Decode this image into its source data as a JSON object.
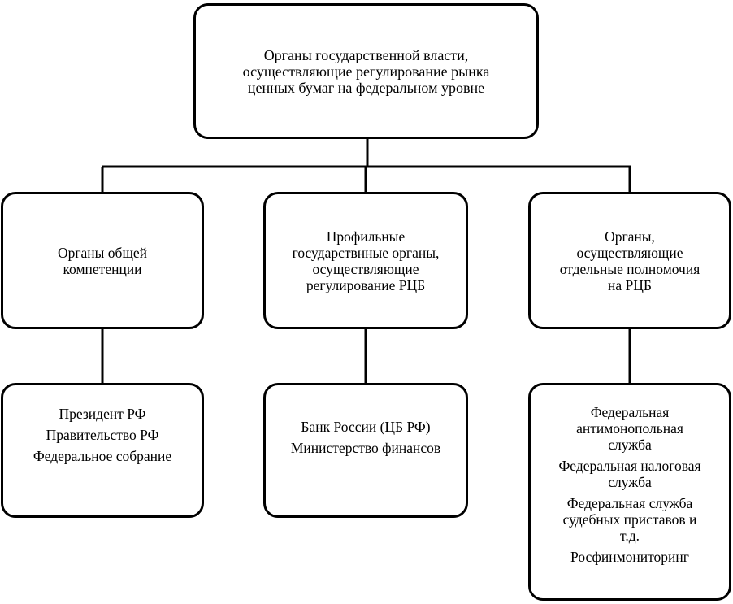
{
  "top": {
    "lines": [
      "Органы государственной власти,",
      "осуществляющие регулирование рынка",
      "ценных бумаг на федеральном уровне"
    ]
  },
  "categories": [
    {
      "title_lines": [
        "Органы общей",
        "компетенции"
      ],
      "items": [
        [
          "Президент РФ"
        ],
        [
          "Правительство РФ"
        ],
        [
          "Федеральное собрание"
        ]
      ]
    },
    {
      "title_lines": [
        "Профильные",
        "государствнные органы,",
        "осуществляющие",
        "регулирование РЦБ"
      ],
      "items": [
        [
          "Банк России (ЦБ РФ)"
        ],
        [
          "Министерство финансов"
        ]
      ]
    },
    {
      "title_lines": [
        "Органы,",
        "осуществляющие",
        "отдельные полномочия",
        "на РЦБ"
      ],
      "items": [
        [
          "Федеральная",
          "антимонопольная",
          "служба"
        ],
        [
          "Федеральная налоговая",
          "служба"
        ],
        [
          "Федеральная служба",
          "судебных приставов и",
          "т.д."
        ],
        [
          "Росфинмониторинг"
        ]
      ]
    }
  ]
}
